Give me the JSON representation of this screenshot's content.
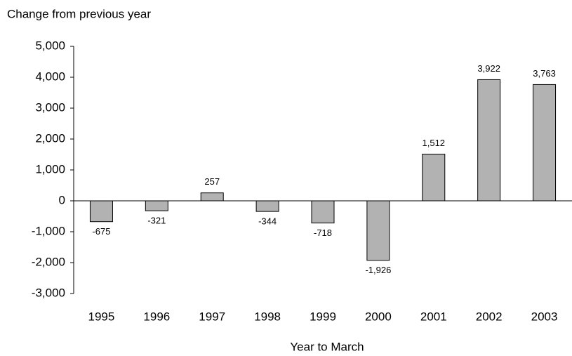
{
  "chart_data": {
    "type": "bar",
    "y_axis_title": "Change from previous year",
    "x_axis_title": "Year to March",
    "categories": [
      "1995",
      "1996",
      "1997",
      "1998",
      "1999",
      "2000",
      "2001",
      "2002",
      "2003"
    ],
    "values": [
      -675,
      -321,
      257,
      -344,
      -718,
      -1926,
      1512,
      3922,
      3763
    ],
    "value_labels": [
      "-675",
      "-321",
      "257",
      "-344",
      "-718",
      "-1,926",
      "1,512",
      "3,922",
      "3,763"
    ],
    "color": "#b2b2b2",
    "ylim": [
      -3000,
      5000
    ],
    "yticks": [
      {
        "value": -3000,
        "label": "-3,000"
      },
      {
        "value": -2000,
        "label": "-2,000"
      },
      {
        "value": -1000,
        "label": "-1,000"
      },
      0,
      {
        "value": 1000,
        "label": "1,000"
      },
      {
        "value": 2000,
        "label": "2,000"
      },
      {
        "value": 3000,
        "label": "3,000"
      },
      {
        "value": 4000,
        "label": "4,000"
      },
      {
        "value": 5000,
        "label": "5,000"
      }
    ],
    "grid": false
  }
}
